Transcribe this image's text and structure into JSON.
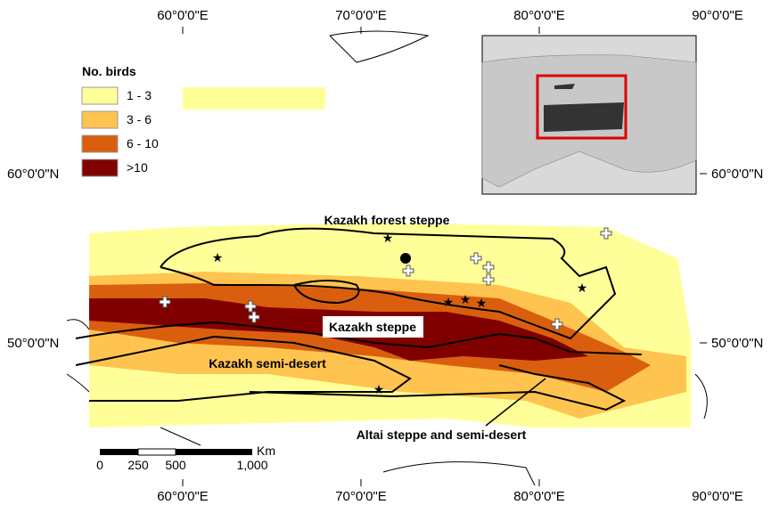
{
  "map": {
    "x_labels": [
      "60°0'0\"E",
      "70°0'0\"E",
      "80°0'0\"E",
      "90°0'0\"E"
    ],
    "y_labels": [
      "60°0'0\"N",
      "50°0'0\"N"
    ],
    "legend": {
      "title": "No. birds",
      "items": [
        {
          "label": "1 - 3",
          "color": "#ffff99"
        },
        {
          "label": "3 - 6",
          "color": "#fec44f"
        },
        {
          "label": "6 - 10",
          "color": "#d95f0e"
        },
        {
          "label": ">10",
          "color": "#800000"
        }
      ]
    },
    "regions": [
      "Kazakh forest steppe",
      "Kazakh steppe",
      "Kazakh semi-desert",
      "Altai steppe and semi-desert"
    ],
    "scale_bar": {
      "unit": "Km",
      "labels": [
        "0",
        "250",
        "500",
        "1,000"
      ]
    }
  }
}
